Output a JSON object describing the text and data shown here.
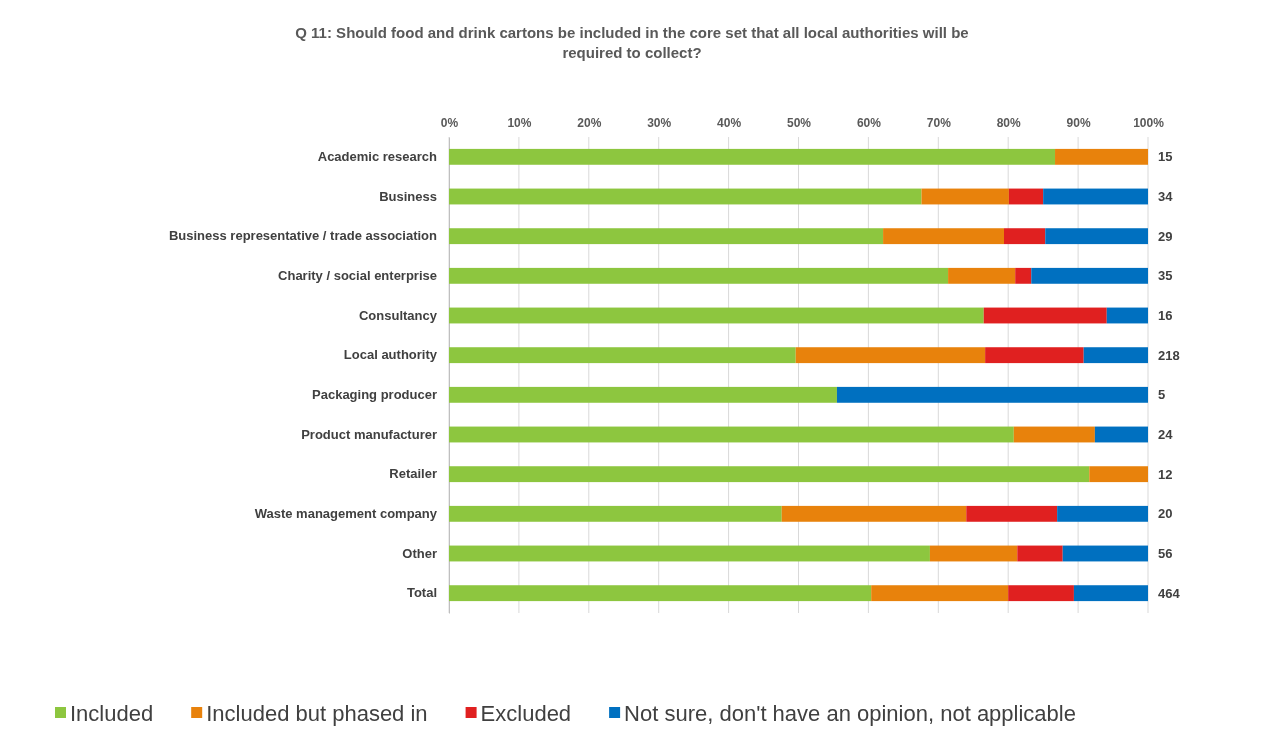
{
  "chart_data": {
    "type": "bar",
    "orientation": "horizontal",
    "stacked": true,
    "title": "Q 11: Should food and drink cartons be included in the core set that all local authorities will be required to collect?",
    "categories": [
      "Academic research",
      "Business",
      "Business representative / trade association",
      "Charity / social enterprise",
      "Consultancy",
      "Local authority",
      "Packaging producer",
      "Product manufacturer",
      "Retailer",
      "Waste management company",
      "Other",
      "Total"
    ],
    "series": [
      {
        "name": "Included",
        "color": "#8dc63f",
        "values": [
          86.7,
          67.6,
          62.1,
          71.4,
          76.5,
          49.6,
          55.5,
          80.8,
          91.6,
          47.6,
          68.8,
          60.4
        ]
      },
      {
        "name": "Included but phased in",
        "color": "#e8820c",
        "values": [
          13.3,
          12.5,
          17.3,
          9.6,
          0,
          27.1,
          0,
          11.6,
          8.4,
          26.4,
          12.5,
          19.6
        ]
      },
      {
        "name": "Excluded",
        "color": "#e02020",
        "values": [
          0,
          4.9,
          5.9,
          2.3,
          17.6,
          14.1,
          0,
          0,
          0,
          13,
          6.5,
          9.4
        ]
      },
      {
        "name": "Not sure, don't have an opinion, not applicable",
        "color": "#0070c0",
        "values": [
          0,
          15,
          14.7,
          16.7,
          5.9,
          9.2,
          44.5,
          7.6,
          0,
          13,
          12.2,
          10.6
        ]
      }
    ],
    "xlim": [
      0,
      100
    ],
    "xticks": [
      {
        "value": 0,
        "label": "0%"
      },
      {
        "value": 10,
        "label": "10%"
      },
      {
        "value": 20,
        "label": "20%"
      },
      {
        "value": 30,
        "label": "30%"
      },
      {
        "value": 40,
        "label": "40%"
      },
      {
        "value": 50,
        "label": "50%"
      },
      {
        "value": 60,
        "label": "60%"
      },
      {
        "value": 70,
        "label": "70%"
      },
      {
        "value": 80,
        "label": "80%"
      },
      {
        "value": 90,
        "label": "90%"
      },
      {
        "value": 100,
        "label": "100%"
      }
    ],
    "grid": "x",
    "legend": "bottom",
    "annotations": [
      "15",
      "34",
      "29",
      "35",
      "16",
      "218",
      "5",
      "24",
      "12",
      "20",
      "56",
      "464"
    ]
  }
}
